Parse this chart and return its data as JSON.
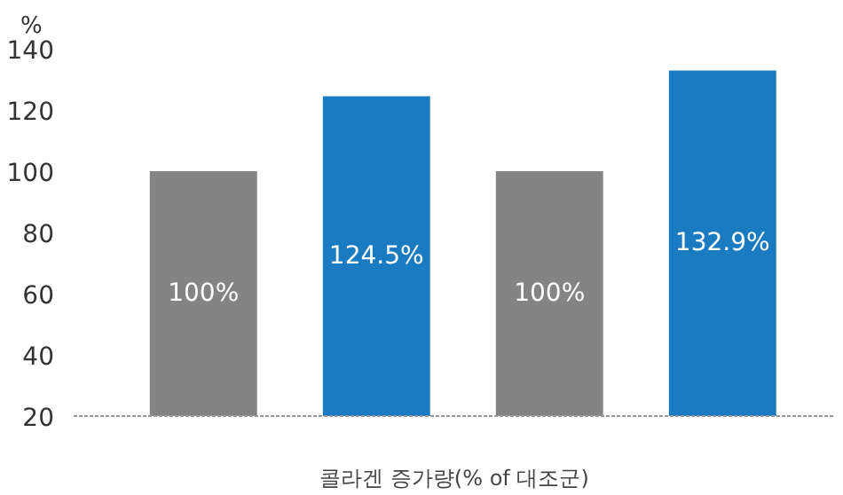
{
  "chart_data": {
    "type": "bar",
    "ylabel": "%",
    "xlabel": "콜라겐 증가량(% of 대조군)",
    "categories": [
      null,
      null,
      null,
      null
    ],
    "values": [
      100,
      124.5,
      100,
      132.9
    ],
    "colors": [
      "#848484",
      "#1b7bc0",
      "#848484",
      "#1b7bc0"
    ],
    "value_labels": [
      "100%",
      "124.5%",
      "100%",
      "132.9%"
    ],
    "ylim": [
      20,
      140
    ],
    "yticks": [
      20,
      40,
      60,
      80,
      100,
      120,
      140
    ],
    "grid": false
  }
}
